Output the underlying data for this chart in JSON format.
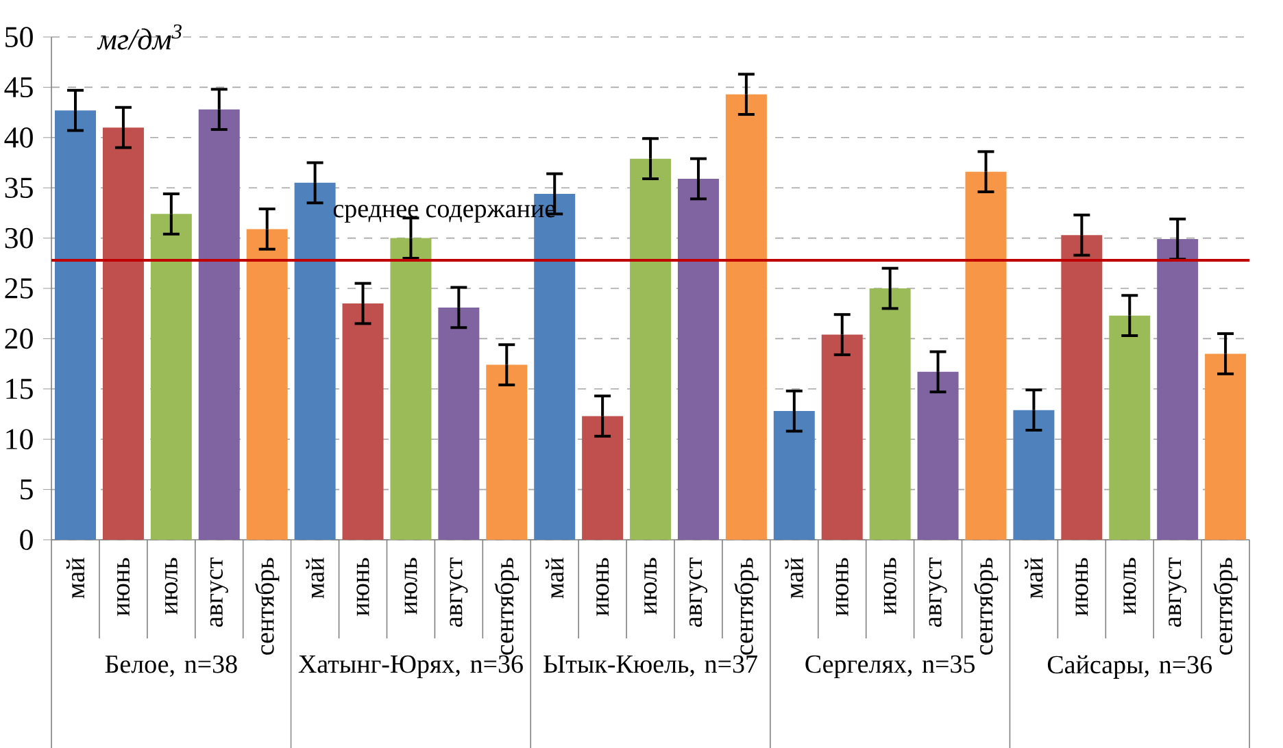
{
  "chart_data": {
    "type": "bar",
    "ylabel": "мг/дм$^{3}$",
    "categories": [
      "май",
      "июнь",
      "июль",
      "август",
      "сентябрь",
      "май",
      "июнь",
      "июль",
      "август",
      "сентябрь",
      "май",
      "июнь",
      "июль",
      "август",
      "сентябрь",
      "май",
      "июнь",
      "июль",
      "август",
      "сентябрь",
      "май",
      "июнь",
      "июль",
      "август",
      "сентябрь"
    ],
    "values": [
      42.7,
      41.0,
      32.4,
      42.8,
      30.9,
      35.5,
      23.5,
      30.0,
      23.1,
      17.4,
      34.4,
      12.3,
      37.9,
      35.9,
      44.3,
      12.8,
      20.4,
      25.0,
      16.7,
      36.6,
      12.9,
      30.3,
      22.3,
      29.9,
      18.5
    ],
    "errors": [
      2,
      2,
      2,
      2,
      2,
      2,
      2,
      2,
      2,
      2,
      2,
      2,
      2,
      2,
      2,
      2,
      2,
      2,
      2,
      2,
      2,
      2,
      2,
      2,
      2
    ],
    "colors": [
      "#4f81bd",
      "#c0504d",
      "#9bbb59",
      "#8064a2",
      "#f79646",
      "#4f81bd",
      "#c0504d",
      "#9bbb59",
      "#8064a2",
      "#f79646",
      "#4f81bd",
      "#c0504d",
      "#9bbb59",
      "#8064a2",
      "#f79646",
      "#4f81bd",
      "#c0504d",
      "#9bbb59",
      "#8064a2",
      "#f79646",
      "#4f81bd",
      "#c0504d",
      "#9bbb59",
      "#8064a2",
      "#f79646"
    ],
    "ylim": [
      0,
      50
    ],
    "yticks": [
      0,
      5,
      10,
      15,
      20,
      25,
      30,
      35,
      40,
      45,
      50
    ],
    "grid": "y",
    "ref_lines": [
      {
        "axis": "y",
        "value": 27.8,
        "label": "среднее содержание",
        "color": "#c00000"
      }
    ],
    "annotations": [
      "Белое, n=38",
      "Хатынг-Юрях, n=36",
      "Ытык-Кюель, n=37",
      "Сергелях, n=35",
      "Сайсары, n=36"
    ]
  }
}
